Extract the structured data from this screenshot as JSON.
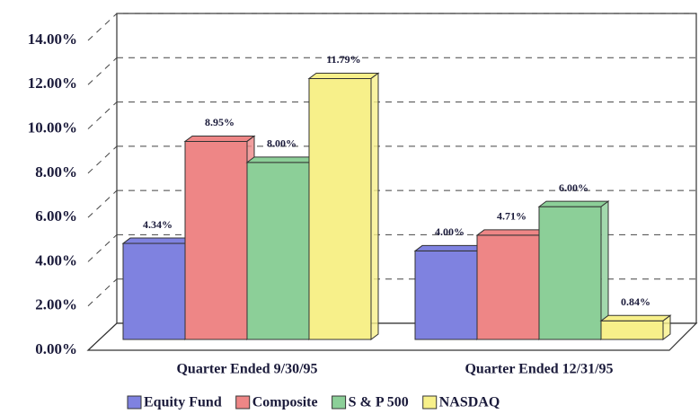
{
  "chart_data": {
    "type": "bar3d",
    "categories": [
      "Quarter Ended 9/30/95",
      "Quarter Ended 12/31/95"
    ],
    "series": [
      {
        "name": "Equity Fund",
        "color": "#7f82e0",
        "values": [
          4.34,
          4.0
        ],
        "value_labels": [
          "4.34%",
          "4.00%"
        ]
      },
      {
        "name": "Composite",
        "color": "#ee8686",
        "values": [
          8.95,
          4.71
        ],
        "value_labels": [
          "8.95%",
          "4.71%"
        ]
      },
      {
        "name": "S & P 500",
        "color": "#8ccf98",
        "values": [
          8.0,
          6.0
        ],
        "value_labels": [
          "8.00%",
          "6.00%"
        ]
      },
      {
        "name": "NASDAQ",
        "color": "#f7f08a",
        "values": [
          11.79,
          0.84
        ],
        "value_labels": [
          "11.79%",
          "0.84%"
        ]
      }
    ],
    "ylim": [
      0,
      14
    ],
    "yticks": [
      {
        "value": 0,
        "label": "0.00%"
      },
      {
        "value": 2,
        "label": "2.00%"
      },
      {
        "value": 4,
        "label": "4.00%"
      },
      {
        "value": 6,
        "label": "6.00%"
      },
      {
        "value": 8,
        "label": "8.00%"
      },
      {
        "value": 10,
        "label": "10.00%"
      },
      {
        "value": 12,
        "label": "12.00%"
      },
      {
        "value": 14,
        "label": "14.00%"
      }
    ],
    "grid": true,
    "legend": "bottom"
  }
}
